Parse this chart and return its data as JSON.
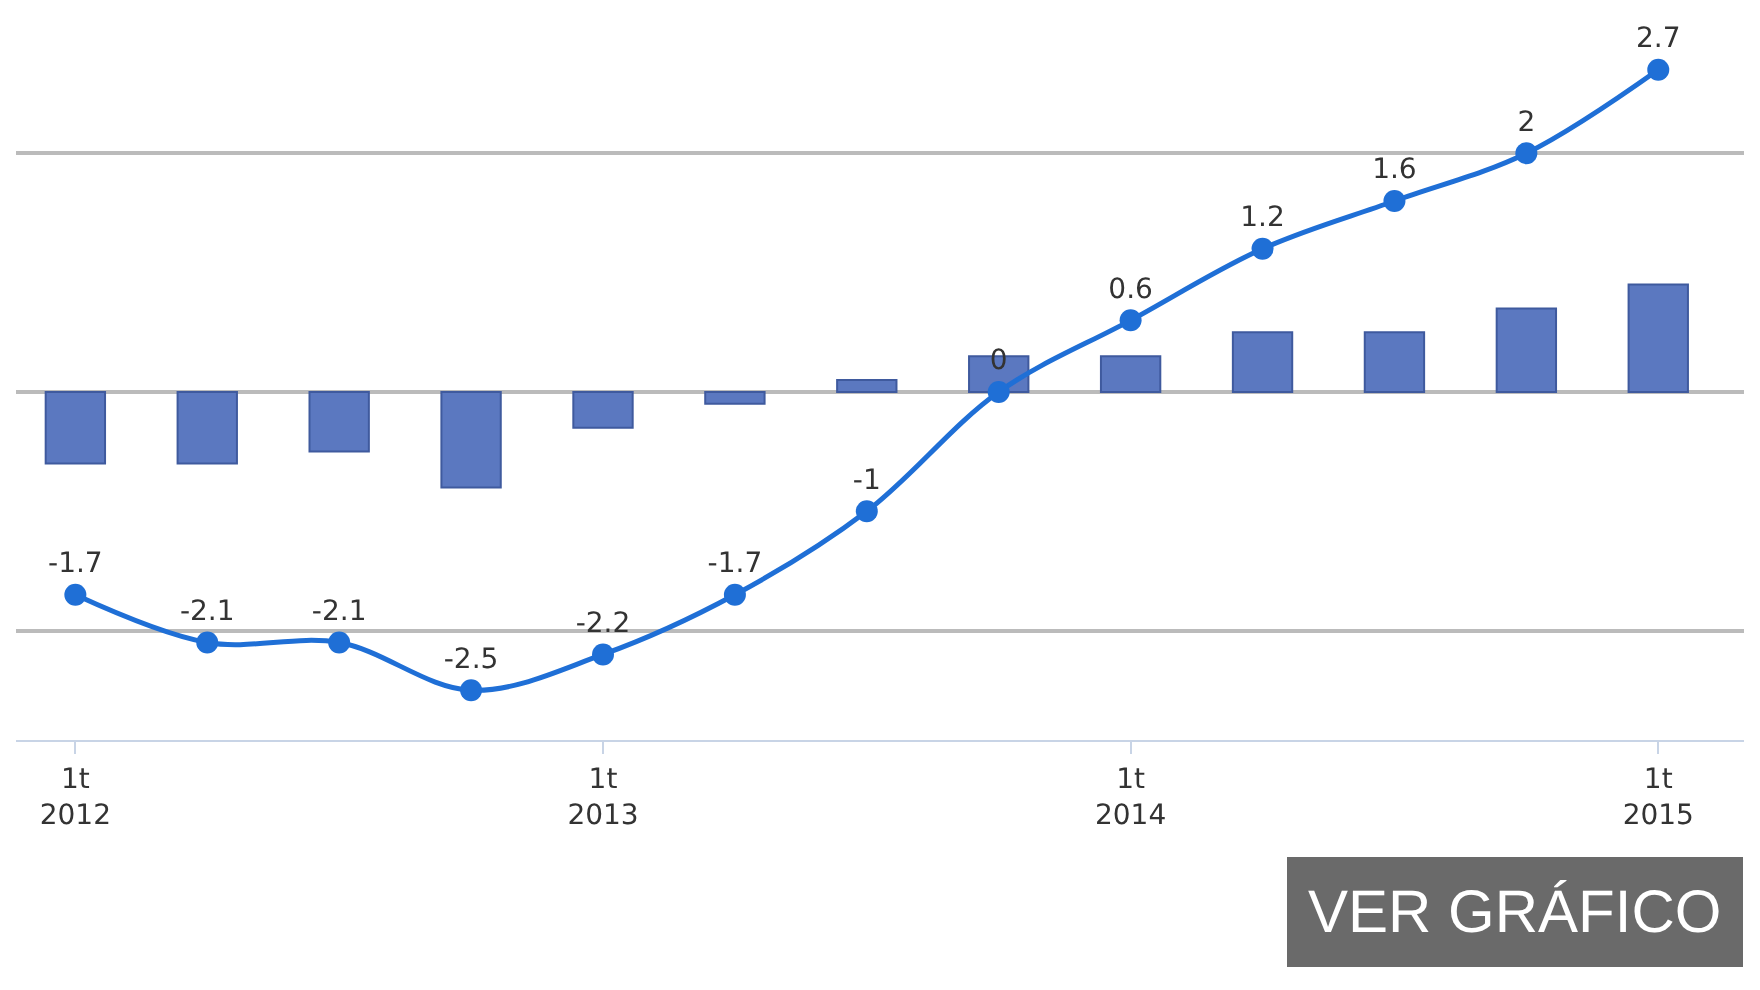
{
  "chart_data": {
    "type": "bar",
    "categories": [
      "1t\n2012",
      null,
      null,
      null,
      "1t\n2013",
      null,
      null,
      null,
      "1t\n2014",
      null,
      null,
      null,
      "1t\n2015"
    ],
    "series": [
      {
        "color": "#5b78c0",
        "values": [
          -0.6,
          -0.6,
          -0.5,
          -0.8,
          -0.3,
          -0.1,
          0.1,
          0.3,
          0.3,
          0.5,
          0.5,
          0.7,
          0.9
        ]
      },
      {
        "type": "line",
        "color": "#1f6fd6",
        "values": [
          -1.7,
          -2.1,
          -2.1,
          -2.5,
          -2.2,
          -1.7,
          -1,
          0,
          0.6,
          1.2,
          1.6,
          2,
          2.7
        ],
        "value_labels": [
          "-1.7",
          "-2.1",
          "-2.1",
          "-2.5",
          "-2.2",
          "-1.7",
          "-1",
          "0",
          "0.6",
          "1.2",
          "1.6",
          "2",
          "2.7"
        ],
        "marker": "circle"
      }
    ],
    "yticks": [
      {
        "value": -2,
        "label": null
      },
      {
        "value": 0,
        "label": null
      },
      {
        "value": 2,
        "label": null
      }
    ],
    "tick_labels": "x",
    "grid": "y",
    "annotations": [
      "VER GRÁFICO"
    ]
  }
}
